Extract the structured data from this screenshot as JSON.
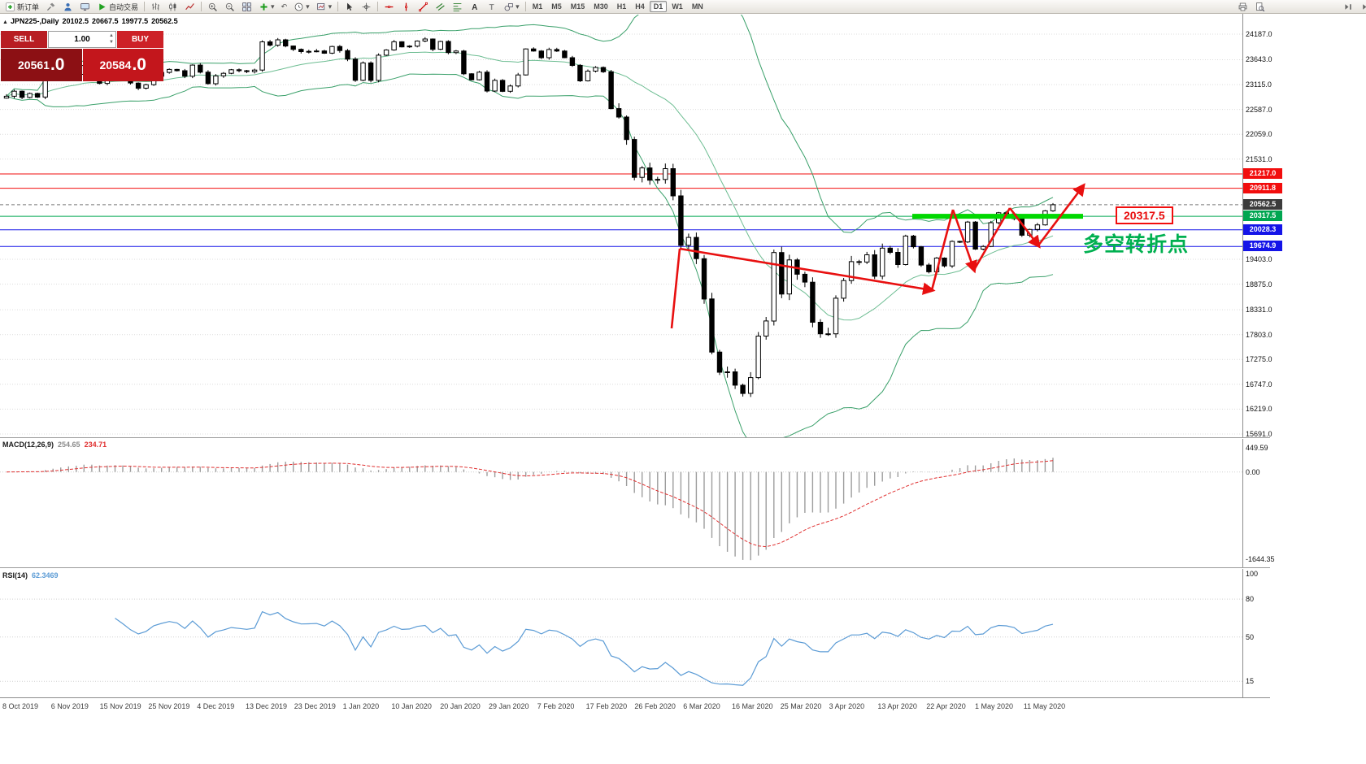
{
  "toolbar": {
    "new_order_label": "新订单",
    "autotrading_label": "自动交易",
    "timeframes": [
      "M1",
      "M5",
      "M15",
      "M30",
      "H1",
      "H4",
      "D1",
      "W1",
      "MN"
    ],
    "active_timeframe": "D1"
  },
  "icons": {
    "collapse": "▲",
    "dropdown": "▾",
    "undo": "↶",
    "spin_up": "▲",
    "spin_down": "▼"
  },
  "symbol_header": {
    "symbol": "JPN225-,Daily",
    "open": "20102.5",
    "high": "20667.5",
    "low": "19977.5",
    "close": "20562.5"
  },
  "trade_panel": {
    "sell_label": "SELL",
    "buy_label": "BUY",
    "volume": "1.00",
    "sell_price_main": "20561",
    "sell_price_frac": ".0",
    "buy_price_main": "20584",
    "buy_price_frac": ".0"
  },
  "indicators": {
    "macd": {
      "label": "MACD(12,26,9)",
      "main_value": "254.65",
      "signal_value": "234.71",
      "axis_labels": [
        {
          "text": "449.59",
          "value": 449.59
        },
        {
          "text": "0.00",
          "value": 0
        },
        {
          "text": "-1644.35",
          "value": -1644.35
        }
      ]
    },
    "rsi": {
      "label": "RSI(14)",
      "value": "62.3469",
      "axis_labels": [
        {
          "text": "100",
          "value": 100
        },
        {
          "text": "80",
          "value": 80
        },
        {
          "text": "50",
          "value": 50
        },
        {
          "text": "15",
          "value": 15
        }
      ]
    }
  },
  "price_axis": {
    "gridlines": [
      24187.0,
      23643.0,
      23115.0,
      22587.0,
      22059.0,
      21531.0,
      19403.0,
      18875.0,
      18331.0,
      17803.0,
      17275.0,
      16747.0,
      16219.0,
      15691.0
    ]
  },
  "hlines": [
    {
      "price": 21217.0,
      "label": "21217.0",
      "color": "#f20d0d",
      "style": "solid"
    },
    {
      "price": 20911.8,
      "label": "20911.8",
      "color": "#f20d0d",
      "style": "solid"
    },
    {
      "price": 20562.5,
      "label": "20562.5",
      "color": "#777777",
      "style": "current"
    },
    {
      "price": 20317.5,
      "label": "20317.5",
      "color": "#00a651",
      "style": "solid"
    },
    {
      "price": 20028.3,
      "label": "20028.3",
      "color": "#1414e8",
      "style": "solid"
    },
    {
      "price": 19674.9,
      "label": "19674.9",
      "color": "#1414e8",
      "style": "solid"
    }
  ],
  "annotations": {
    "support_price_label": "20317.5",
    "turning_point_label": "多空转折点",
    "support_level": 20317.5
  },
  "date_axis": [
    "8 Oct 2019",
    "6 Nov 2019",
    "15 Nov 2019",
    "25 Nov 2019",
    "4 Dec 2019",
    "13 Dec 2019",
    "23 Dec 2019",
    "1 Jan 2020",
    "10 Jan 2020",
    "20 Jan 2020",
    "29 Jan 2020",
    "7 Feb 2020",
    "17 Feb 2020",
    "26 Feb 2020",
    "6 Mar 2020",
    "16 Mar 2020",
    "25 Mar 2020",
    "3 Apr 2020",
    "13 Apr 2020",
    "22 Apr 2020",
    "1 May 2020",
    "11 May 2020"
  ],
  "chart_data": {
    "type": "candlestick",
    "symbol": "JPN225-",
    "timeframe": "Daily",
    "ohlc_header": {
      "open": 20102.5,
      "high": 20667.5,
      "low": 19977.5,
      "close": 20562.5
    },
    "visible_price_range": [
      15691.0,
      24187.0
    ],
    "horizontal_levels": [
      21217.0,
      20911.8,
      20562.5,
      20317.5,
      20028.3,
      19674.9
    ],
    "indicator_settings": {
      "bollinger_period": 20,
      "bollinger_dev": 2,
      "macd": [
        12,
        26,
        9
      ],
      "rsi_period": 14
    },
    "closes": [
      22867,
      22974,
      22843,
      22927,
      22850,
      23251,
      23303,
      23330,
      23391,
      23331,
      23520,
      23319,
      23141,
      23303,
      23416,
      23292,
      23148,
      23038,
      23112,
      23292,
      23373,
      23437,
      23409,
      23293,
      23529,
      23379,
      23135,
      23300,
      23354,
      23430,
      23410,
      23391,
      23424,
      24023,
      23952,
      24066,
      23934,
      23864,
      23816,
      23821,
      23830,
      23782,
      23924,
      23837,
      23656,
      23205,
      23575,
      23204,
      23740,
      23851,
      24025,
      23916,
      23933,
      24041,
      24084,
      23865,
      24031,
      23795,
      23827,
      23344,
      23216,
      23379,
      22978,
      23205,
      22972,
      23085,
      23320,
      23873,
      23828,
      23686,
      23861,
      23828,
      23687,
      23523,
      23194,
      23401,
      23479,
      23387,
      22605,
      22426,
      21948,
      21143,
      21344,
      21083,
      21100,
      21329,
      20750,
      19699,
      19867,
      19416,
      18560,
      17431,
      17002,
      17011,
      16727,
      16553,
      16888,
      17771,
      18092,
      19547,
      18665,
      19389,
      19085,
      18917,
      18065,
      17819,
      17820,
      18576,
      18950,
      19353,
      19346,
      19499,
      19043,
      19639,
      19550,
      19291,
      19897,
      19669,
      19281,
      19138,
      19429,
      19262,
      19783,
      19771,
      20194,
      19619,
      19675,
      20180,
      20391,
      20366,
      20267,
      19915,
      20037,
      20134,
      20433,
      20562.5
    ]
  }
}
